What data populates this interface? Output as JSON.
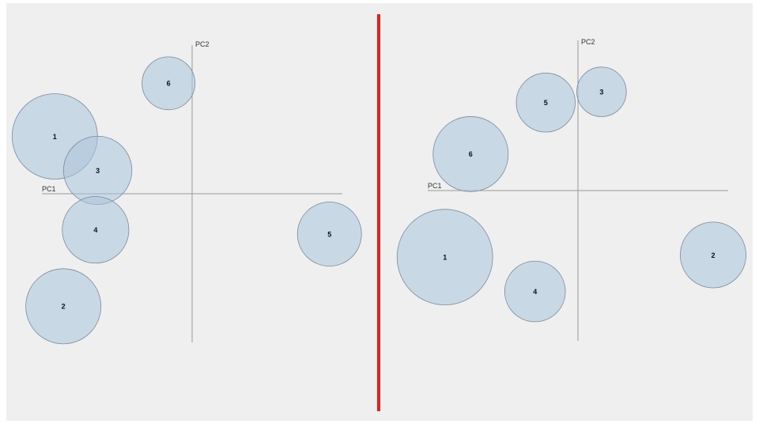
{
  "colors": {
    "background": "#efefef",
    "bubble_fill": "#a9c4dd",
    "bubble_stroke": "#7a8a99",
    "divider": "#e0241b",
    "axis": "#9a9a9a"
  },
  "chart_data": [
    {
      "type": "scatter",
      "xlabel": "PC1",
      "ylabel": "PC2",
      "xlim": [
        -3.5,
        3.5
      ],
      "ylim": [
        -3.5,
        3.5
      ],
      "grid": false,
      "points": [
        {
          "label": "1",
          "x": -3.2,
          "y": 1.35,
          "size": 1.0
        },
        {
          "label": "2",
          "x": -3.0,
          "y": -2.65,
          "size": 0.88
        },
        {
          "label": "3",
          "x": -2.2,
          "y": 0.55,
          "size": 0.8
        },
        {
          "label": "4",
          "x": -2.25,
          "y": -0.85,
          "size": 0.78
        },
        {
          "label": "5",
          "x": 3.2,
          "y": -0.95,
          "size": 0.75
        },
        {
          "label": "6",
          "x": -0.55,
          "y": 2.6,
          "size": 0.62
        }
      ]
    },
    {
      "type": "scatter",
      "xlabel": "PC1",
      "ylabel": "PC2",
      "xlim": [
        -3.5,
        3.5
      ],
      "ylim": [
        -3.5,
        3.5
      ],
      "grid": false,
      "points": [
        {
          "label": "1",
          "x": -3.1,
          "y": -1.55,
          "size": 1.12
        },
        {
          "label": "2",
          "x": 3.15,
          "y": -1.5,
          "size": 0.77
        },
        {
          "label": "3",
          "x": 0.55,
          "y": 2.3,
          "size": 0.58
        },
        {
          "label": "4",
          "x": -1.0,
          "y": -2.35,
          "size": 0.71
        },
        {
          "label": "5",
          "x": -0.75,
          "y": 2.05,
          "size": 0.69
        },
        {
          "label": "6",
          "x": -2.5,
          "y": 0.85,
          "size": 0.88
        }
      ]
    }
  ]
}
